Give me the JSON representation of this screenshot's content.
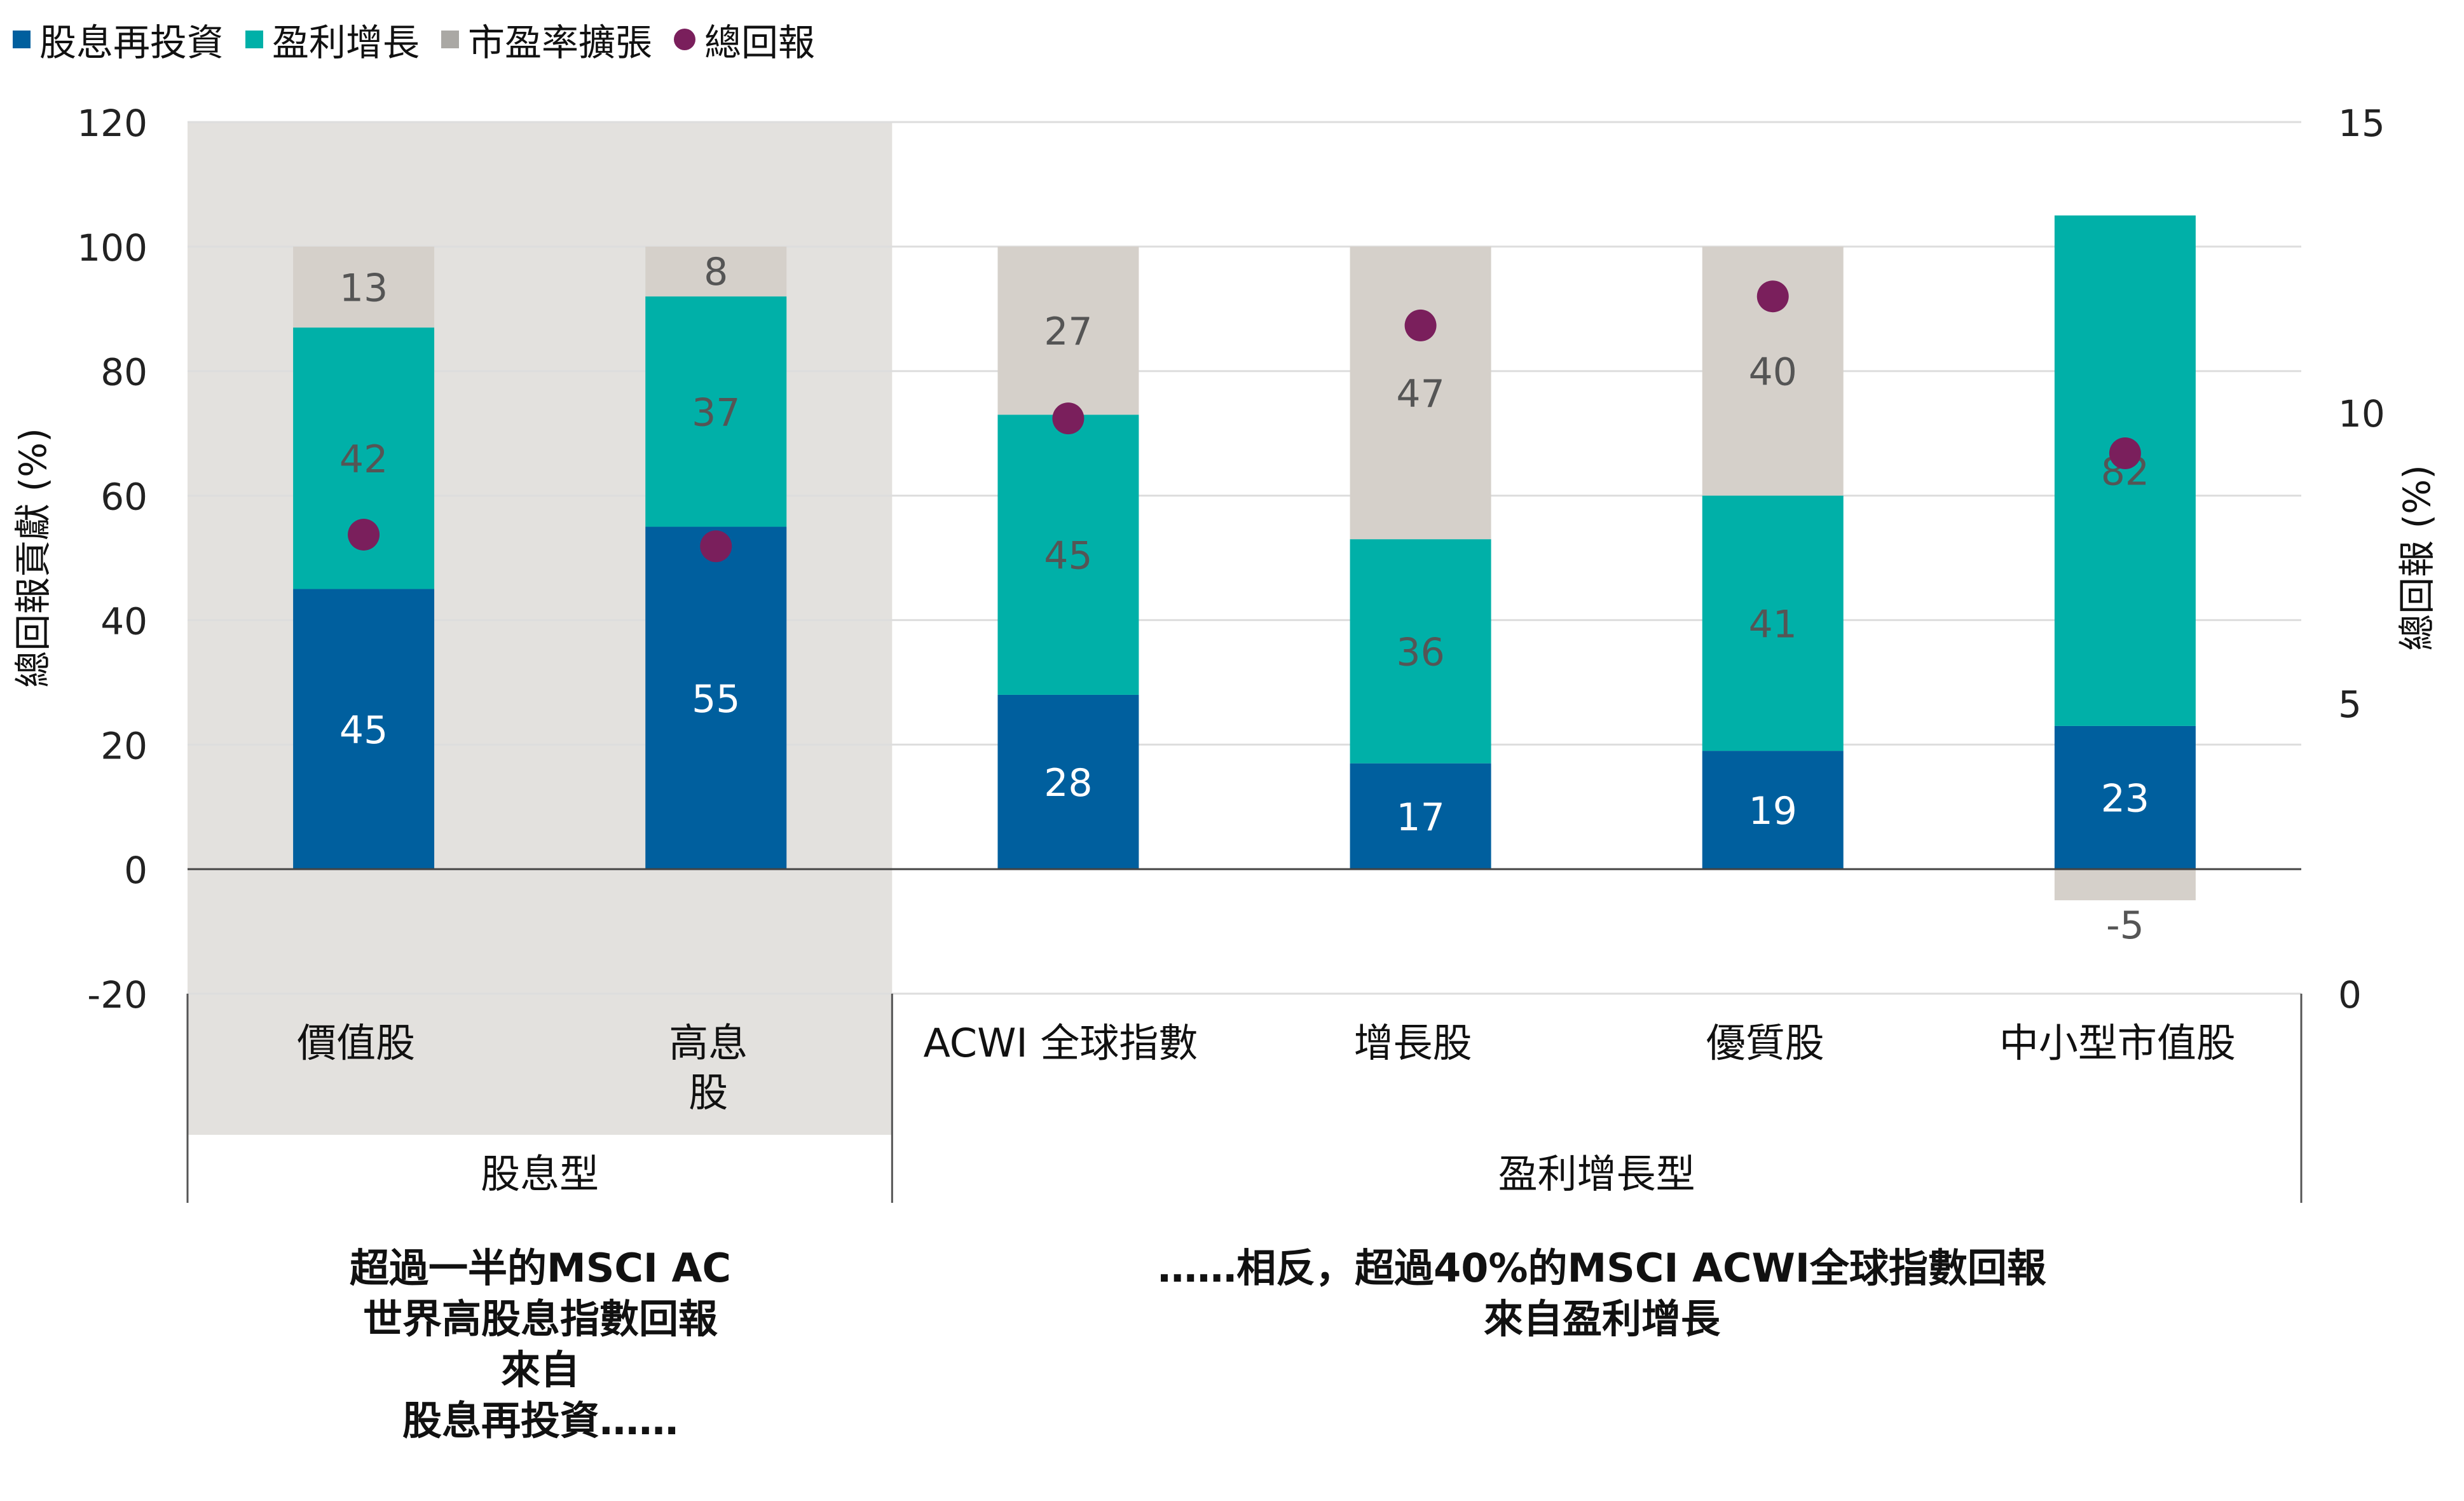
{
  "legend": [
    {
      "label": "股息再投資",
      "color": "#005f9e",
      "shape": "square"
    },
    {
      "label": "盈利增長",
      "color": "#00b0a8",
      "shape": "square"
    },
    {
      "label": "市盈率擴張",
      "color": "#aaa8a4",
      "shape": "square"
    },
    {
      "label": "總回報",
      "color": "#7a1f5c",
      "shape": "dot"
    }
  ],
  "chart_data": {
    "type": "bar",
    "stacked": true,
    "categories": [
      "價值股",
      "高息\n股",
      "ACWI 全球指數",
      "增長股",
      "優質股",
      "中小型市值股"
    ],
    "groups": [
      {
        "label": "股息型",
        "categories": [
          0,
          1
        ],
        "shaded": true
      },
      {
        "label": "盈利增長型",
        "categories": [
          2,
          3,
          4,
          5
        ],
        "shaded": false
      }
    ],
    "series": [
      {
        "name": "股息再投資",
        "color": "#005f9e",
        "label_color": "#ffffff",
        "values": [
          45,
          55,
          28,
          17,
          19,
          23
        ]
      },
      {
        "name": "盈利增長",
        "color": "#00b0a8",
        "label_color": "#555555",
        "values": [
          42,
          37,
          45,
          36,
          41,
          82
        ]
      },
      {
        "name": "市盈率擴張",
        "color": "#d5d0ca",
        "label_color": "#555555",
        "values": [
          13,
          8,
          27,
          47,
          40,
          -5
        ]
      }
    ],
    "total_return": {
      "name": "總回報",
      "color": "#7a1f5c",
      "axis": "right",
      "values": [
        7.9,
        7.7,
        9.9,
        11.5,
        12.0,
        9.3
      ]
    },
    "ylabel": "總回報貢獻 (%)",
    "y2label": "總回報 (%)",
    "ylim": [
      -20,
      120
    ],
    "yticks": [
      -20,
      0,
      20,
      40,
      60,
      80,
      100,
      120
    ],
    "y2lim": [
      0,
      15
    ],
    "y2ticks": [
      0,
      5,
      10,
      15
    ],
    "grid": true,
    "shade_color": "#e3e1de"
  },
  "notes": {
    "left": [
      "超過一半的MSCI AC",
      "世界高股息指數回報",
      "來自",
      "股息再投資……"
    ],
    "right": [
      "……相反，超過40%的MSCI ACWI全球指數回報",
      "來自盈利增長"
    ]
  }
}
